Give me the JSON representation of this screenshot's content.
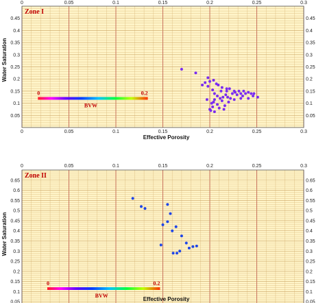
{
  "chart_data": [
    {
      "type": "scatter",
      "zone_label": "Zone I",
      "xlabel": "Effective Porosity",
      "ylabel": "Water Saturation",
      "xlim": [
        0,
        0.3
      ],
      "ylim": [
        0,
        0.5
      ],
      "x_ticks": [
        "0",
        "0.05",
        "0.1",
        "0.15",
        "0.2",
        "0.25",
        "0.3"
      ],
      "y_ticks": [
        "0.05",
        "0.1",
        "0.15",
        "0.2",
        "0.25",
        "0.3",
        "0.35",
        "0.4",
        "0.45"
      ],
      "grid": true,
      "point_color": "#7a2cf0",
      "points": [
        [
          0.17,
          0.24
        ],
        [
          0.185,
          0.225
        ],
        [
          0.198,
          0.205
        ],
        [
          0.204,
          0.195
        ],
        [
          0.2,
          0.19
        ],
        [
          0.207,
          0.18
        ],
        [
          0.192,
          0.175
        ],
        [
          0.198,
          0.17
        ],
        [
          0.213,
          0.165
        ],
        [
          0.221,
          0.16
        ],
        [
          0.203,
          0.155
        ],
        [
          0.212,
          0.15
        ],
        [
          0.218,
          0.15
        ],
        [
          0.226,
          0.15
        ],
        [
          0.231,
          0.15
        ],
        [
          0.236,
          0.15
        ],
        [
          0.241,
          0.145
        ],
        [
          0.224,
          0.14
        ],
        [
          0.233,
          0.14
        ],
        [
          0.238,
          0.14
        ],
        [
          0.244,
          0.14
        ],
        [
          0.205,
          0.14
        ],
        [
          0.217,
          0.135
        ],
        [
          0.229,
          0.135
        ],
        [
          0.246,
          0.13
        ],
        [
          0.251,
          0.125
        ],
        [
          0.208,
          0.13
        ],
        [
          0.214,
          0.125
        ],
        [
          0.219,
          0.125
        ],
        [
          0.211,
          0.12
        ],
        [
          0.222,
          0.12
        ],
        [
          0.233,
          0.12
        ],
        [
          0.241,
          0.12
        ],
        [
          0.205,
          0.115
        ],
        [
          0.213,
          0.11
        ],
        [
          0.22,
          0.105
        ],
        [
          0.226,
          0.115
        ],
        [
          0.202,
          0.1
        ],
        [
          0.208,
          0.095
        ],
        [
          0.216,
          0.09
        ],
        [
          0.203,
          0.085
        ],
        [
          0.21,
          0.08
        ],
        [
          0.201,
          0.07
        ],
        [
          0.205,
          0.065
        ],
        [
          0.215,
          0.075
        ],
        [
          0.197,
          0.115
        ],
        [
          0.204,
          0.105
        ],
        [
          0.2,
          0.075
        ],
        [
          0.227,
          0.145
        ],
        [
          0.235,
          0.13
        ],
        [
          0.247,
          0.14
        ],
        [
          0.218,
          0.16
        ],
        [
          0.209,
          0.175
        ],
        [
          0.195,
          0.185
        ]
      ],
      "bvw_scale": {
        "label": "BVW",
        "min_label": "0",
        "max_label": "0.2",
        "start_x": 0.017,
        "end_x": 0.134,
        "y": 0.12
      }
    },
    {
      "type": "scatter",
      "zone_label": "Zone II",
      "xlabel": "Effective Porosity",
      "ylabel": "Water Saturation",
      "xlim": [
        0,
        0.3
      ],
      "ylim": [
        0,
        0.7
      ],
      "x_ticks": [
        "0",
        "0.05",
        "0.1",
        "0.15",
        "0.2",
        "0.25",
        "0.3"
      ],
      "y_ticks": [
        "0.05",
        "0.1",
        "0.15",
        "0.2",
        "0.25",
        "0.3",
        "0.35",
        "0.4",
        "0.45",
        "0.5",
        "0.55",
        "0.6",
        "0.65"
      ],
      "grid": true,
      "point_color": "#1f45e6",
      "points": [
        [
          0.118,
          0.56
        ],
        [
          0.127,
          0.52
        ],
        [
          0.131,
          0.51
        ],
        [
          0.155,
          0.53
        ],
        [
          0.158,
          0.485
        ],
        [
          0.155,
          0.445
        ],
        [
          0.16,
          0.4
        ],
        [
          0.164,
          0.42
        ],
        [
          0.17,
          0.375
        ],
        [
          0.175,
          0.34
        ],
        [
          0.182,
          0.322
        ],
        [
          0.186,
          0.325
        ],
        [
          0.178,
          0.315
        ],
        [
          0.168,
          0.3
        ],
        [
          0.165,
          0.29
        ],
        [
          0.161,
          0.29
        ],
        [
          0.148,
          0.33
        ],
        [
          0.15,
          0.43
        ]
      ],
      "bvw_scale": {
        "label": "BVW",
        "min_label": "0",
        "max_label": "0.2",
        "start_x": 0.027,
        "end_x": 0.147,
        "y": 0.115
      }
    }
  ]
}
